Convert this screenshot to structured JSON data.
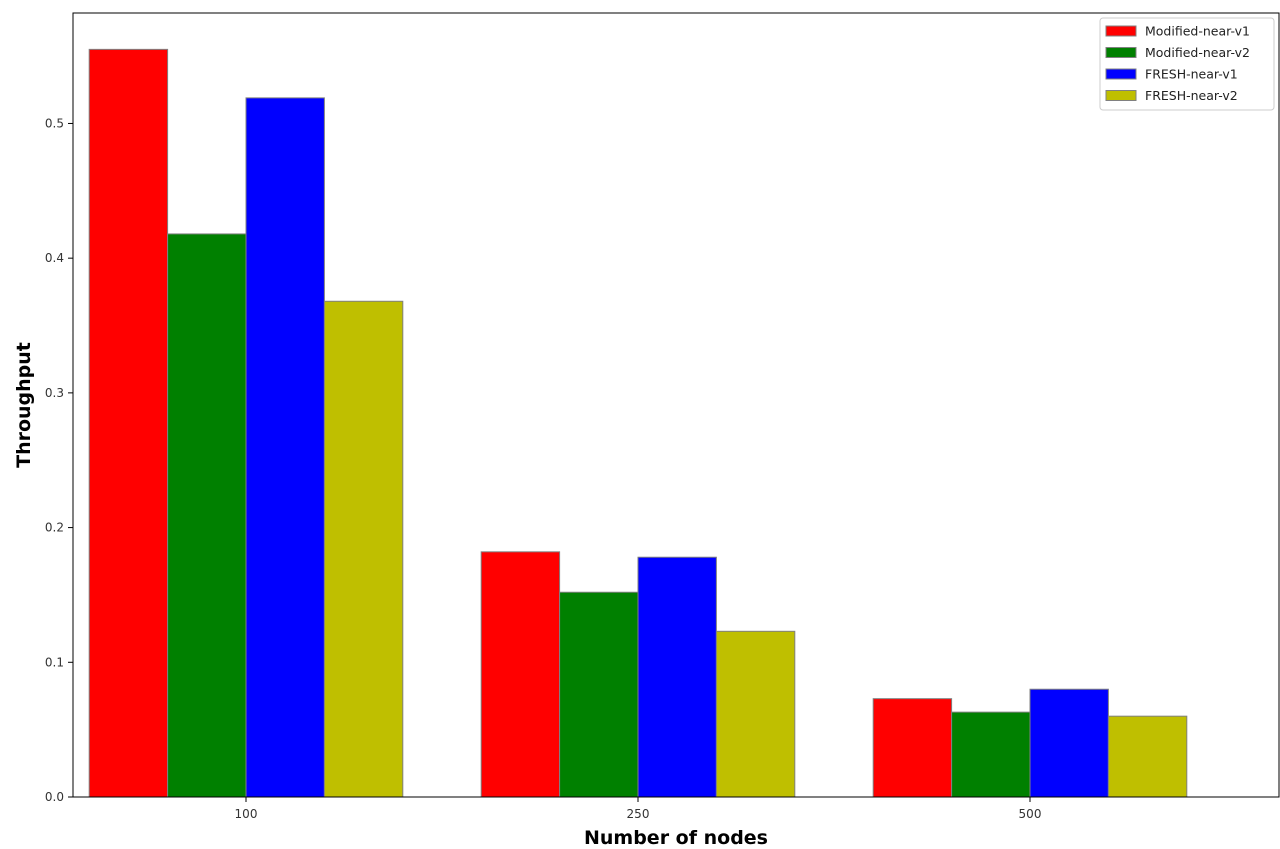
{
  "chart_data": {
    "type": "bar",
    "title": "",
    "xlabel": "Number of nodes",
    "ylabel": "Throughput",
    "categories": [
      "100",
      "250",
      "500"
    ],
    "series": [
      {
        "name": "Modified-near-v1",
        "color": "#ff0000",
        "values": [
          0.555,
          0.182,
          0.073
        ]
      },
      {
        "name": "Modified-near-v2",
        "color": "#008000",
        "values": [
          0.418,
          0.152,
          0.063
        ]
      },
      {
        "name": "FRESH-near-v1",
        "color": "#0000ff",
        "values": [
          0.519,
          0.178,
          0.08
        ]
      },
      {
        "name": "FRESH-near-v2",
        "color": "#bfbf00",
        "values": [
          0.368,
          0.123,
          0.06
        ]
      }
    ],
    "yticks": [
      0.0,
      0.1,
      0.2,
      0.3,
      0.4,
      0.5
    ],
    "ylim": [
      0,
      0.582
    ],
    "grid": false,
    "legend_position": "top-right",
    "bar_edge_color": "#808080"
  }
}
